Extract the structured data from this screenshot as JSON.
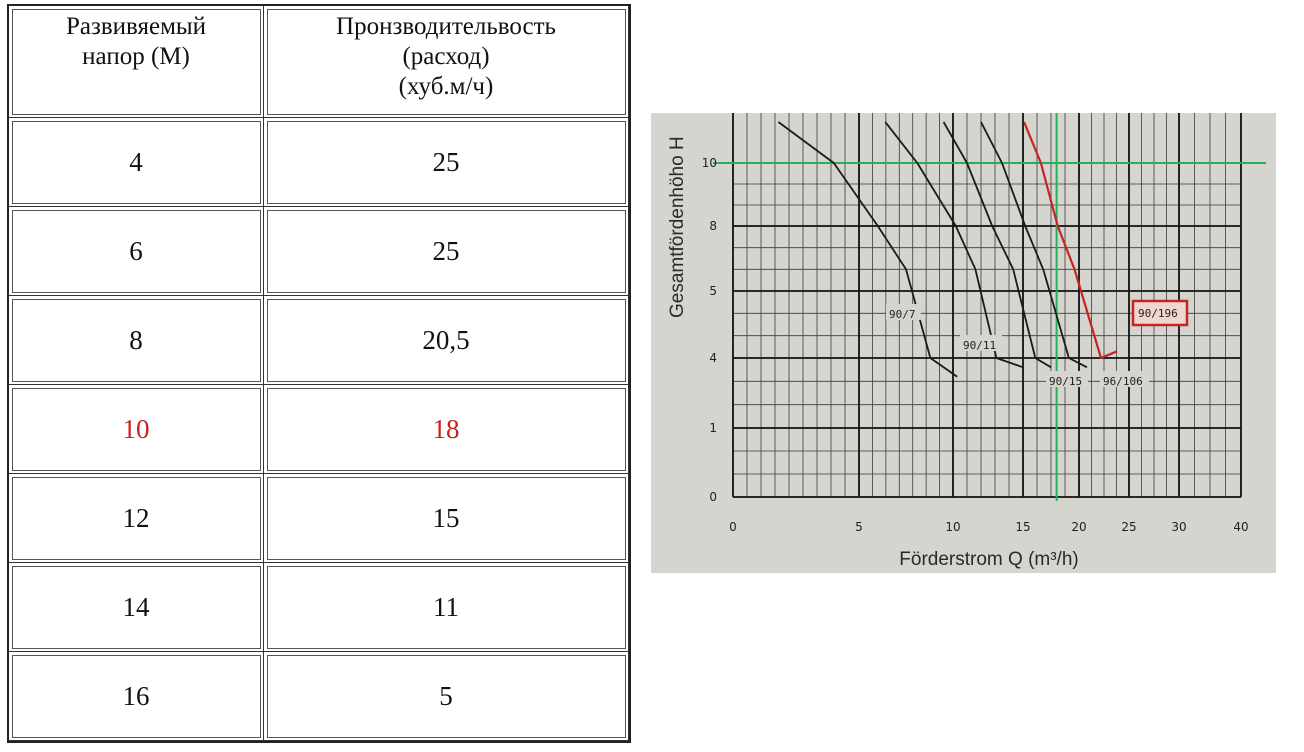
{
  "table": {
    "headers": [
      [
        "Развивяемый",
        "напор (М)"
      ],
      [
        "Пронзводительвость",
        "(расход)",
        "(хуб.м/ч)"
      ]
    ],
    "rows": [
      {
        "head": "4",
        "flow": "25"
      },
      {
        "head": "6",
        "flow": "25"
      },
      {
        "head": "8",
        "flow": "20,5"
      },
      {
        "head": "10",
        "flow": "18",
        "highlight": true
      },
      {
        "head": "12",
        "flow": "15"
      },
      {
        "head": "14",
        "flow": "11"
      },
      {
        "head": "16",
        "flow": "5"
      }
    ],
    "highlight_color": "#cc1f1f"
  },
  "chart_data": {
    "type": "line",
    "title": "",
    "xlabel": "Förderstrom Q (m³/h)",
    "ylabel": "Gesamtfördenhöho H",
    "x_tick_labels": [
      "0",
      "5",
      "10",
      "15",
      "20",
      "25",
      "30",
      "40"
    ],
    "y_tick_labels": [
      "0",
      "1",
      "4",
      "5",
      "8",
      "10"
    ],
    "grid": true,
    "xlim": [
      0,
      40
    ],
    "series": [
      {
        "name": "90/7",
        "color": "#1a1a1a",
        "x": [
          1.8,
          4.0,
          6.0,
          7.5,
          8.8,
          10.3
        ],
        "y": [
          11.3,
          10.0,
          8.0,
          6.0,
          4.0,
          3.2
        ]
      },
      {
        "name": "90/11",
        "color": "#1a1a1a",
        "x": [
          6.4,
          8.1,
          10.2,
          11.6,
          13.1,
          15.0
        ],
        "y": [
          11.3,
          10.0,
          8.0,
          6.0,
          4.0,
          3.6
        ]
      },
      {
        "name": "90/15",
        "color": "#1a1a1a",
        "x": [
          9.5,
          11.0,
          12.8,
          14.3,
          16.1,
          17.5
        ],
        "y": [
          11.3,
          10.0,
          8.0,
          6.0,
          4.0,
          3.6
        ]
      },
      {
        "name": "96/106",
        "color": "#1a1a1a",
        "x": [
          12.0,
          13.5,
          15.2,
          16.8,
          19.1,
          20.8
        ],
        "y": [
          11.3,
          10.0,
          8.0,
          6.0,
          4.0,
          3.6
        ]
      },
      {
        "name": "90/196",
        "color": "#c42525",
        "highlighted": true,
        "x": [
          15.1,
          16.6,
          18.1,
          19.6,
          22.2,
          23.8
        ],
        "y": [
          11.3,
          10.0,
          8.0,
          6.0,
          4.0,
          4.1
        ]
      }
    ],
    "reference_lines": {
      "color": "#22b35a",
      "horizontal_y_tick": "10",
      "vertical_x": 18
    }
  }
}
